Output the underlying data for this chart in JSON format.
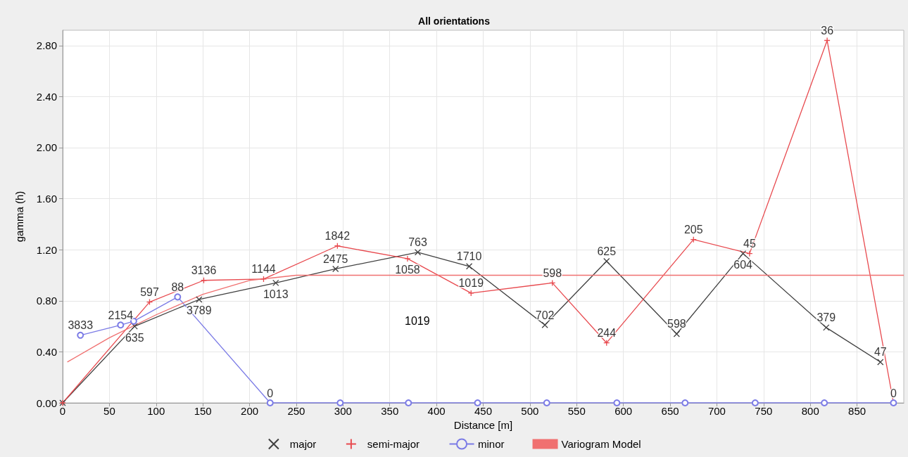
{
  "chart_data": {
    "type": "line",
    "title": "All orientations",
    "xlabel": "Distance [m]",
    "ylabel": "gamma (h)",
    "xlim": [
      0,
      900
    ],
    "xticks": [
      0,
      50,
      100,
      150,
      200,
      250,
      300,
      350,
      400,
      450,
      500,
      550,
      600,
      650,
      700,
      750,
      800,
      850
    ],
    "ylim": [
      0,
      2.92
    ],
    "yticks": [
      {
        "value": 0,
        "label": "0.00"
      },
      {
        "value": 0.4,
        "label": "0.40"
      },
      {
        "value": 0.8,
        "label": "0.80"
      },
      {
        "value": 1.2,
        "label": "1.20"
      },
      {
        "value": 1.6,
        "label": "1.60"
      },
      {
        "value": 2.0,
        "label": "2.00"
      },
      {
        "value": 2.4,
        "label": "2.40"
      },
      {
        "value": 2.8,
        "label": "2.80"
      }
    ],
    "grid": true,
    "legend": "bottom",
    "series": [
      {
        "name": "major",
        "color": "#404040",
        "marker": "cross",
        "x": [
          0,
          77,
          146,
          228,
          292,
          380,
          435,
          516,
          582,
          657,
          728,
          817,
          875
        ],
        "values": [
          0,
          0.6,
          0.81,
          0.94,
          1.05,
          1.18,
          1.07,
          0.61,
          1.11,
          0.54,
          1.17,
          0.59,
          0.32
        ]
      },
      {
        "name": "semi-major",
        "color": "#e84a4f",
        "marker": "plus",
        "x": [
          0,
          93,
          151,
          215,
          294,
          369,
          437,
          524,
          582,
          675,
          735,
          818,
          889
        ],
        "values": [
          0,
          0.79,
          0.96,
          0.97,
          1.23,
          1.13,
          0.86,
          0.94,
          0.47,
          1.28,
          1.17,
          2.84,
          0
        ]
      },
      {
        "name": "minor",
        "color": "#7b7be6",
        "marker": "circle",
        "x": [
          19,
          62,
          76,
          123,
          222,
          297,
          370,
          444,
          518,
          593,
          666,
          741,
          815,
          889
        ],
        "values": [
          0.53,
          0.61,
          0.64,
          0.83,
          0,
          0,
          0,
          0,
          0,
          0,
          0,
          0,
          0,
          0
        ]
      },
      {
        "name": "Variogram Model",
        "color": "#f07070",
        "marker": "none",
        "x": [
          5,
          50,
          100,
          150,
          200,
          250,
          900
        ],
        "values": [
          0.32,
          0.51,
          0.69,
          0.85,
          0.96,
          1.0,
          1.0
        ]
      }
    ],
    "annotations": [
      {
        "text": "635",
        "x": 77,
        "y": 0.6
      },
      {
        "text": "3789",
        "x": 146,
        "y": 0.81
      },
      {
        "text": "1013",
        "x": 228,
        "y": 0.94
      },
      {
        "text": "2475",
        "x": 292,
        "y": 1.05
      },
      {
        "text": "763",
        "x": 380,
        "y": 1.18
      },
      {
        "text": "1710",
        "x": 435,
        "y": 1.07
      },
      {
        "text": "702",
        "x": 516,
        "y": 0.61
      },
      {
        "text": "625",
        "x": 582,
        "y": 1.11
      },
      {
        "text": "598",
        "x": 657,
        "y": 0.54
      },
      {
        "text": "604",
        "x": 728,
        "y": 1.17
      },
      {
        "text": "379",
        "x": 817,
        "y": 0.59
      },
      {
        "text": "47",
        "x": 875,
        "y": 0.32
      },
      {
        "text": "597",
        "x": 93,
        "y": 0.79
      },
      {
        "text": "3136",
        "x": 151,
        "y": 0.96
      },
      {
        "text": "1144",
        "x": 215,
        "y": 0.97
      },
      {
        "text": "1842",
        "x": 294,
        "y": 1.23
      },
      {
        "text": "1058",
        "x": 369,
        "y": 1.13
      },
      {
        "text": "1019",
        "x": 437,
        "y": 0.86
      },
      {
        "text": "598",
        "x": 524,
        "y": 0.94
      },
      {
        "text": "244",
        "x": 582,
        "y": 0.47
      },
      {
        "text": "205",
        "x": 675,
        "y": 1.28
      },
      {
        "text": "45",
        "x": 735,
        "y": 1.17
      },
      {
        "text": "36",
        "x": 818,
        "y": 2.84
      },
      {
        "text": "0",
        "x": 889,
        "y": 0
      },
      {
        "text": "3833",
        "x": 19,
        "y": 0.53
      },
      {
        "text": "2154",
        "x": 62,
        "y": 0.61
      },
      {
        "text": "88",
        "x": 123,
        "y": 0.83
      },
      {
        "text": "0",
        "x": 222,
        "y": 0
      },
      "1019"
    ]
  }
}
